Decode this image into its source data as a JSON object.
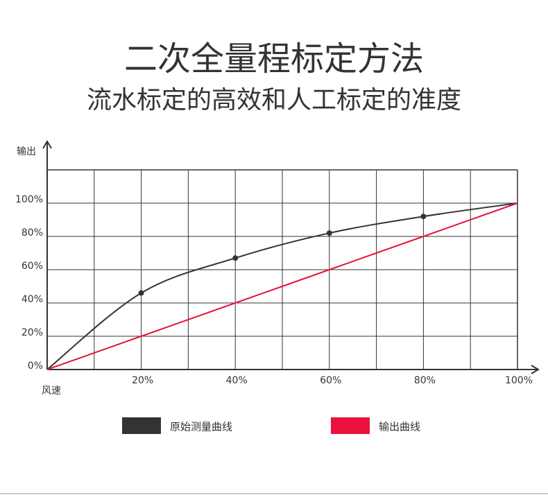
{
  "chart_data": {
    "type": "line",
    "title": "二次全量程标定方法",
    "subtitle": "流水标定的高效和人工标定的准度",
    "y_label": "输出",
    "x_label": "风速",
    "x": [
      0,
      20,
      40,
      60,
      80,
      100
    ],
    "series": [
      {
        "name": "原始测量曲线",
        "color": "#333333",
        "values": [
          0,
          46,
          67,
          82,
          92,
          100
        ]
      },
      {
        "name": "输出曲线",
        "color": "#e8123c",
        "values": [
          0,
          20,
          40,
          60,
          80,
          100
        ]
      }
    ],
    "xlim": [
      0,
      100
    ],
    "ylim": [
      0,
      120
    ],
    "xticks": [
      {
        "value": 20,
        "label": "20%"
      },
      {
        "value": 40,
        "label": "40%"
      },
      {
        "value": 60,
        "label": "60%"
      },
      {
        "value": 80,
        "label": "80%"
      },
      {
        "value": 100,
        "label": "100%"
      }
    ],
    "xminorticks": [
      10,
      30,
      50,
      70,
      90
    ],
    "yticks": [
      {
        "value": 0,
        "label": "0%"
      },
      {
        "value": 20,
        "label": "20%"
      },
      {
        "value": 40,
        "label": "40%"
      },
      {
        "value": 60,
        "label": "60%"
      },
      {
        "value": 80,
        "label": "80%"
      },
      {
        "value": 100,
        "label": "100%"
      }
    ],
    "grid": true,
    "legend": "bottom"
  }
}
